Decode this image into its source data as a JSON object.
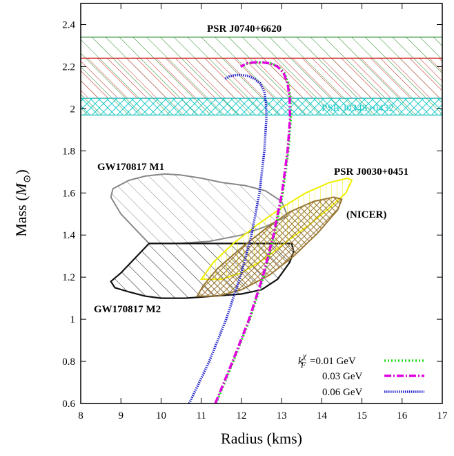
{
  "chart_data": {
    "type": "line",
    "xlabel": "Radius (kms)",
    "ylabel_main": "Mass (",
    "ylabel_sym": "M",
    "ylabel_sub": "⊙",
    "ylabel_end": ")",
    "xlim": [
      8,
      17
    ],
    "ylim": [
      0.6,
      2.5
    ],
    "x_ticks": [
      8,
      9,
      10,
      11,
      12,
      13,
      14,
      15,
      16,
      17
    ],
    "y_ticks": [
      0.6,
      0.8,
      1,
      1.2,
      1.4,
      1.6,
      1.8,
      2,
      2.2,
      2.4
    ],
    "grid": false,
    "legend_placement": "bottom-right",
    "legend_prefix": "k",
    "legend_prefix_sup": "χ",
    "legend_prefix_sub": "F",
    "series": [
      {
        "name": "=0.01 GeV",
        "color": "#22dd22",
        "dash": "dotted",
        "x": [
          11.37,
          11.8,
          12.21,
          12.55,
          12.82,
          13.03,
          13.17,
          13.23,
          13.22,
          13.17,
          13.07,
          12.92,
          12.75,
          12.55,
          12.34,
          12.15,
          12.0
        ],
        "y": [
          0.6,
          0.8,
          1.0,
          1.2,
          1.4,
          1.6,
          1.8,
          1.95,
          2.05,
          2.12,
          2.17,
          2.2,
          2.215,
          2.22,
          2.22,
          2.215,
          2.2
        ]
      },
      {
        "name": "0.03 GeV",
        "color": "#e000e0",
        "dash": "dashdot",
        "x": [
          11.35,
          11.78,
          12.19,
          12.53,
          12.8,
          13.01,
          13.15,
          13.21,
          13.2,
          13.15,
          13.05,
          12.9,
          12.73,
          12.53,
          12.32,
          12.13,
          11.98
        ],
        "y": [
          0.6,
          0.8,
          1.0,
          1.2,
          1.4,
          1.6,
          1.8,
          1.95,
          2.05,
          2.12,
          2.17,
          2.2,
          2.215,
          2.22,
          2.22,
          2.215,
          2.2
        ]
      },
      {
        "name": "0.06 GeV",
        "color": "#2222cc",
        "dash": "dense-dot",
        "x": [
          10.7,
          11.2,
          11.62,
          11.97,
          12.25,
          12.45,
          12.57,
          12.62,
          12.61,
          12.57,
          12.47,
          12.34,
          12.19,
          12.03,
          11.86,
          11.71,
          11.58
        ],
        "y": [
          0.6,
          0.8,
          1.0,
          1.2,
          1.4,
          1.6,
          1.8,
          1.95,
          2.03,
          2.08,
          2.12,
          2.14,
          2.155,
          2.16,
          2.16,
          2.155,
          2.14
        ]
      }
    ],
    "bands": [
      {
        "label": "PSR J0740+6620",
        "ymin": 1.97,
        "ymax": 2.34,
        "color": "#228822",
        "hatch": "diagonal"
      },
      {
        "label": "",
        "ymin": 2.05,
        "ymax": 2.24,
        "color": "#cc2222",
        "hatch": "diagonal"
      },
      {
        "label": "PSR J0348+0432",
        "ymin": 1.97,
        "ymax": 2.05,
        "color": "#22cccc",
        "hatch": "cross"
      }
    ],
    "regions": [
      {
        "label": "GW170817 M1",
        "color": "#888888",
        "hatch": "diagonal",
        "x": [
          9.7,
          9.4,
          9.0,
          8.75,
          8.8,
          9.2,
          9.6,
          10.1,
          10.5,
          11.0,
          11.5,
          12.1,
          12.6,
          13.0,
          13.15,
          12.6,
          12.0,
          11.2,
          10.4,
          9.7
        ],
        "y": [
          1.36,
          1.42,
          1.5,
          1.58,
          1.62,
          1.66,
          1.68,
          1.69,
          1.685,
          1.67,
          1.65,
          1.635,
          1.61,
          1.56,
          1.49,
          1.44,
          1.4,
          1.37,
          1.36,
          1.36
        ]
      },
      {
        "label": "GW170817 M2",
        "color": "#111111",
        "hatch": "diagonal",
        "x": [
          9.7,
          9.4,
          9.0,
          8.75,
          8.85,
          9.2,
          9.6,
          10.0,
          10.6,
          11.3,
          12.0,
          12.5,
          12.9,
          13.2,
          13.3,
          13.25,
          12.6,
          11.6,
          10.6,
          9.7
        ],
        "y": [
          1.36,
          1.3,
          1.22,
          1.18,
          1.15,
          1.13,
          1.11,
          1.1,
          1.1,
          1.11,
          1.12,
          1.14,
          1.19,
          1.27,
          1.32,
          1.36,
          1.36,
          1.36,
          1.36,
          1.36
        ]
      },
      {
        "label": "PSR J0030+0451",
        "sublabel": "(NICER)",
        "color": "#eeee00",
        "hatch": "vertical",
        "x": [
          11.0,
          11.5,
          12.0,
          12.6,
          13.2,
          13.7,
          14.2,
          14.6,
          14.75,
          14.65,
          14.2,
          13.6,
          13.0,
          12.4,
          11.8,
          11.3,
          11.0
        ],
        "y": [
          1.19,
          1.19,
          1.22,
          1.29,
          1.38,
          1.45,
          1.53,
          1.6,
          1.66,
          1.67,
          1.65,
          1.6,
          1.53,
          1.45,
          1.36,
          1.27,
          1.19
        ]
      },
      {
        "label": "",
        "color": "#997733",
        "hatch": "cross",
        "x": [
          10.9,
          11.4,
          12.0,
          12.7,
          13.3,
          13.9,
          14.4,
          14.5,
          14.3,
          13.8,
          13.2,
          12.6,
          12.0,
          11.4,
          11.05,
          10.9
        ],
        "y": [
          1.11,
          1.11,
          1.14,
          1.21,
          1.3,
          1.41,
          1.52,
          1.57,
          1.58,
          1.56,
          1.51,
          1.43,
          1.34,
          1.24,
          1.16,
          1.11
        ]
      }
    ],
    "annotations": {
      "psr0740": "PSR J0740+6620",
      "psr0348": "PSR J0348+0432",
      "psr0030": "PSR J0030+0451",
      "nicer": "(NICER)",
      "m1": "GW170817 M1",
      "m2": "GW170817 M2"
    }
  }
}
